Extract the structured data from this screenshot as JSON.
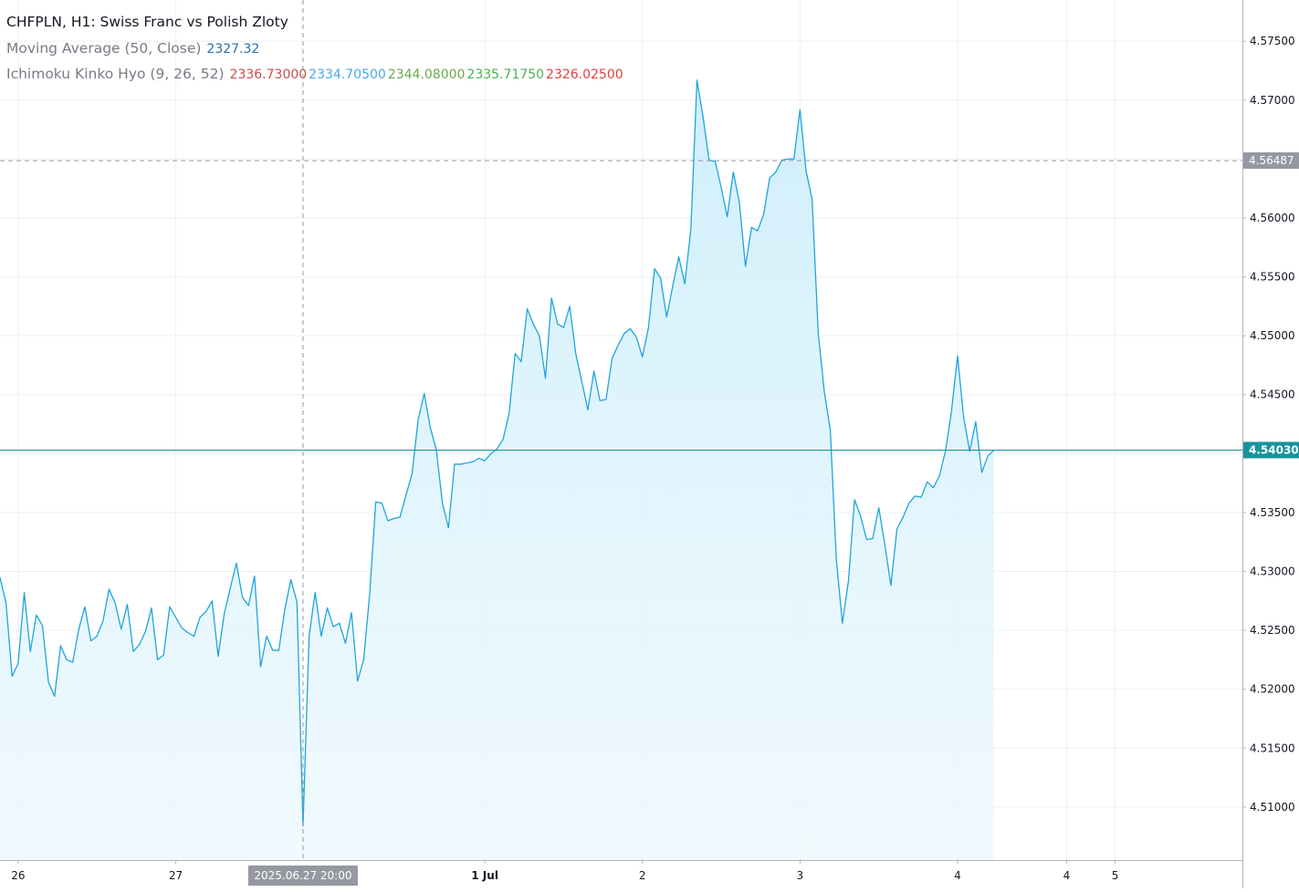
{
  "legend": {
    "title": "CHFPLN, H1: Swiss Franc vs Polish Zloty",
    "ma_label": "Moving Average (50, Close)",
    "ma_value": "2327.32",
    "ichimoku_label": "Ichimoku Kinko Hyo (9, 26, 52)",
    "ichimoku_values": [
      "2336.73000",
      "2334.70500",
      "2344.08000",
      "2335.71750",
      "2326.02500"
    ]
  },
  "colors": {
    "line": "#1ea5dc",
    "fill": "#d6f0fa",
    "last_price_line": "#17939c",
    "crosshair_label_bg": "#9598a1",
    "ma": "#2a6ea8",
    "ichimoku": [
      "#c0504d",
      "#4ba8e6",
      "#6aa84f",
      "#4cb050",
      "#e0403a"
    ]
  },
  "chart_data": {
    "type": "area",
    "symbol": "CHFPLN",
    "interval": "H1",
    "y_ticks": [
      4.575,
      4.57,
      4.565,
      4.56,
      4.555,
      4.55,
      4.545,
      4.54,
      4.535,
      4.53,
      4.525,
      4.52,
      4.515,
      4.51
    ],
    "y_tick_labels": [
      "4.57500",
      "4.57000",
      "4.56000",
      "4.55500",
      "4.55000",
      "4.54500",
      "4.53500",
      "4.53000",
      "4.52500",
      "4.52000",
      "4.51500",
      "4.51000"
    ],
    "ylim": [
      4.5055,
      4.5785
    ],
    "x_tick_labels": [
      "26",
      "27",
      "1 Jul",
      "2",
      "3",
      "4",
      "4",
      "5"
    ],
    "last_price": 4.5403,
    "last_price_label": "4.54030",
    "crosshair_price": 4.56487,
    "crosshair_price_label": "4.56487",
    "crosshair_time_label": "2025.06.27 20:00",
    "grid": true,
    "x_index_range": [
      0,
      205
    ],
    "x_tick_positions": [
      3,
      29,
      80,
      106,
      132,
      158,
      176,
      184
    ],
    "crosshair_x_index": 50,
    "values": [
      4.5295,
      4.5273,
      4.5211,
      4.5222,
      4.5282,
      4.5232,
      4.5263,
      4.5254,
      4.5206,
      4.5194,
      4.5237,
      4.5225,
      4.5223,
      4.5251,
      4.527,
      4.5241,
      4.5245,
      4.5258,
      4.5285,
      4.5273,
      4.5251,
      4.5272,
      4.5232,
      4.5238,
      4.5249,
      4.5269,
      4.5225,
      4.5229,
      4.527,
      4.5261,
      4.5252,
      4.5248,
      4.5245,
      4.5261,
      4.5266,
      4.5275,
      4.5228,
      4.5264,
      4.5286,
      4.5307,
      4.5278,
      4.5271,
      4.5296,
      4.5219,
      4.5245,
      4.5233,
      4.5233,
      4.5268,
      4.5293,
      4.5274,
      4.5084,
      4.5245,
      4.5282,
      4.5245,
      4.5269,
      4.5253,
      4.5256,
      4.5239,
      4.5265,
      4.5207,
      4.5225,
      4.5281,
      4.5359,
      4.5358,
      4.5343,
      4.5345,
      4.5346,
      4.5365,
      4.5383,
      4.5429,
      4.5451,
      4.5422,
      4.5403,
      4.5358,
      4.5337,
      4.5391,
      4.5391,
      4.5392,
      4.5393,
      4.5396,
      4.5394,
      4.54,
      4.5404,
      4.5412,
      4.5434,
      4.5485,
      4.5478,
      4.5523,
      4.551,
      4.55,
      4.5464,
      4.5532,
      4.551,
      4.5507,
      4.5525,
      4.5485,
      4.5461,
      4.5437,
      4.547,
      4.5445,
      4.5446,
      4.5481,
      4.5492,
      4.5502,
      4.5506,
      4.5499,
      4.5482,
      4.5507,
      4.5557,
      4.5549,
      4.5516,
      4.5542,
      4.5567,
      4.5544,
      4.5591,
      4.5717,
      4.5686,
      4.5649,
      4.5648,
      4.5626,
      4.5601,
      4.5639,
      4.5613,
      4.5559,
      4.5592,
      4.5589,
      4.5603,
      4.5634,
      4.5639,
      4.5649,
      4.565,
      4.565,
      4.5692,
      4.564,
      4.5616,
      4.5503,
      4.5453,
      4.542,
      4.531,
      4.5256,
      4.5292,
      4.5361,
      4.5347,
      4.5327,
      4.5328,
      4.5354,
      4.5323,
      4.5288,
      4.5336,
      4.5346,
      4.5358,
      4.5364,
      4.5363,
      4.5376,
      4.5371,
      4.5381,
      4.5402,
      4.5436,
      4.5483,
      4.5431,
      4.5402,
      4.5427,
      4.5384,
      4.5398,
      4.5403
    ]
  }
}
